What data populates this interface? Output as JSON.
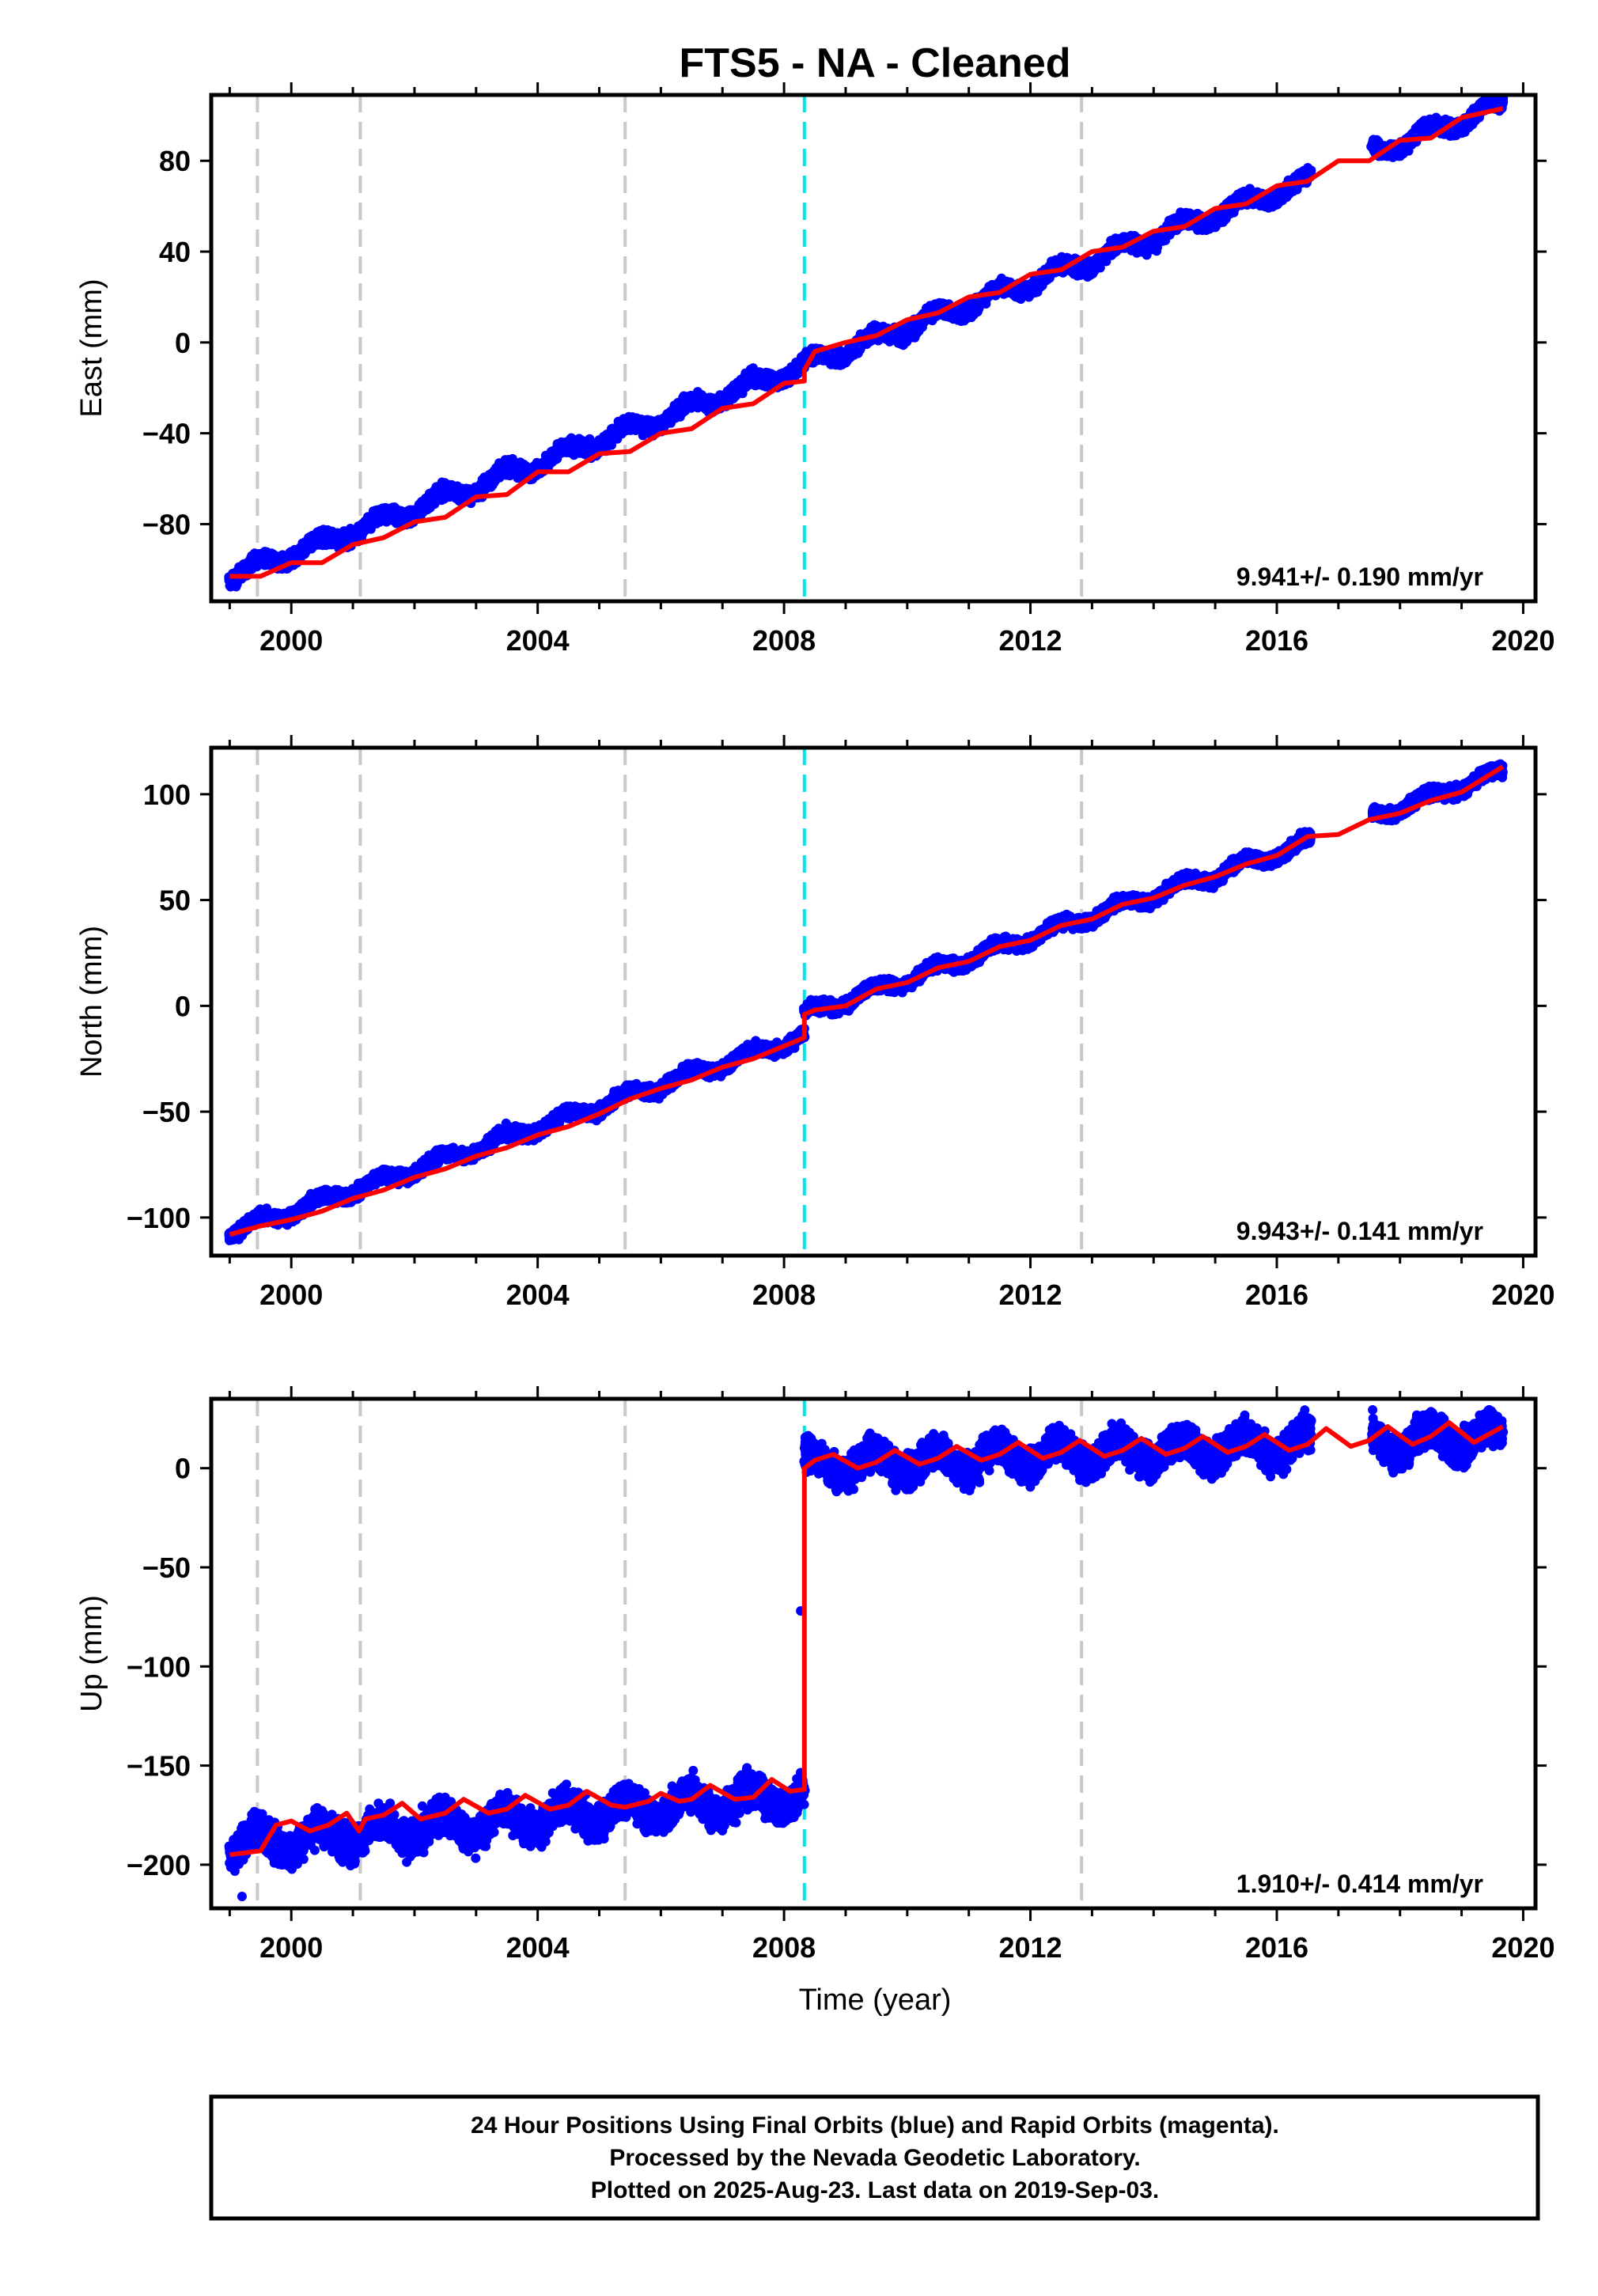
{
  "title": "FTS5  - NA - Cleaned",
  "xlabel": "Time (year)",
  "footer": {
    "line1": "24 Hour Positions Using Final Orbits (blue) and Rapid Orbits (magenta).",
    "line2": "Processed by the Nevada Geodetic Laboratory.",
    "line3": "Plotted on 2025-Aug-23. Last data on 2019-Sep-03."
  },
  "colors": {
    "data": "#0000ff",
    "model": "#ff0000",
    "equipment_change": "#c8c8c8",
    "offset_event": "#00e5ee",
    "frame": "#000000"
  },
  "chart_data": [
    {
      "type": "scatter",
      "panel": "east",
      "ylabel": "East (mm)",
      "rate": "9.941+/- 0.190 mm/yr",
      "xlim": [
        1998.7,
        2020.2
      ],
      "ylim": [
        -114,
        109
      ],
      "yticks": [
        -80,
        -40,
        0,
        40,
        80
      ],
      "xticks": [
        2000,
        2004,
        2008,
        2012,
        2016,
        2020
      ],
      "grey_lines": [
        1999.45,
        2001.12,
        2005.42,
        2012.83
      ],
      "cyan_lines": [
        2008.33
      ],
      "series": [
        {
          "role": "daily positions (blue)",
          "segments": [
            {
              "x": [
                1999.0,
                2008.33
              ],
              "trend_at_start": -103.0,
              "rate": 9.941,
              "seasonal_amp": 3.0,
              "scatter": 2.2
            },
            {
              "x": [
                2008.33,
                2016.55
              ],
              "trend_at_start": -10.0,
              "rate": 9.941,
              "seasonal_amp": 3.0,
              "scatter": 2.2
            },
            {
              "x": [
                2017.55,
                2019.67
              ],
              "trend_at_start": 83.6,
              "rate": 9.941,
              "seasonal_amp": 3.0,
              "scatter": 2.2
            }
          ]
        },
        {
          "role": "model fit (red)",
          "points": [
            [
              1999.0,
              -103
            ],
            [
              1999.5,
              -103
            ],
            [
              2000.0,
              -97
            ],
            [
              2000.5,
              -97
            ],
            [
              2001.0,
              -89
            ],
            [
              2001.5,
              -86
            ],
            [
              2002.0,
              -79
            ],
            [
              2002.5,
              -77
            ],
            [
              2003.0,
              -68
            ],
            [
              2003.5,
              -67
            ],
            [
              2004.0,
              -57
            ],
            [
              2004.5,
              -57
            ],
            [
              2005.0,
              -49
            ],
            [
              2005.5,
              -48
            ],
            [
              2006.0,
              -40
            ],
            [
              2006.5,
              -38
            ],
            [
              2007.0,
              -29
            ],
            [
              2007.5,
              -27
            ],
            [
              2008.0,
              -18
            ],
            [
              2008.33,
              -17
            ],
            [
              2008.33,
              -12
            ],
            [
              2008.5,
              -4
            ],
            [
              2009.0,
              0
            ],
            [
              2009.5,
              3
            ],
            [
              2010.0,
              10
            ],
            [
              2010.5,
              13
            ],
            [
              2011.0,
              20
            ],
            [
              2011.5,
              22
            ],
            [
              2012.0,
              30
            ],
            [
              2012.5,
              32
            ],
            [
              2013.0,
              40
            ],
            [
              2013.5,
              42
            ],
            [
              2014.0,
              49
            ],
            [
              2014.5,
              51
            ],
            [
              2015.0,
              59
            ],
            [
              2015.5,
              61
            ],
            [
              2016.0,
              69
            ],
            [
              2016.5,
              71
            ],
            [
              2017.0,
              80
            ],
            [
              2017.5,
              80
            ],
            [
              2018.0,
              89
            ],
            [
              2018.5,
              90
            ],
            [
              2019.0,
              99
            ],
            [
              2019.67,
              103
            ]
          ]
        }
      ]
    },
    {
      "type": "scatter",
      "panel": "north",
      "ylabel": "North (mm)",
      "rate": "9.943+/- 0.141 mm/yr",
      "xlim": [
        1998.7,
        2020.2
      ],
      "ylim": [
        -118,
        122
      ],
      "yticks": [
        -100,
        -50,
        0,
        50,
        100
      ],
      "xticks": [
        2000,
        2004,
        2008,
        2012,
        2016,
        2020
      ],
      "grey_lines": [
        1999.45,
        2001.12,
        2005.42,
        2012.83
      ],
      "cyan_lines": [
        2008.33
      ],
      "series": [
        {
          "role": "daily positions (blue)",
          "segments": [
            {
              "x": [
                1999.0,
                2008.33
              ],
              "trend_at_start": -107.0,
              "rate": 9.943,
              "seasonal_amp": 2.5,
              "scatter": 2.0
            },
            {
              "x": [
                2008.33,
                2016.55
              ],
              "trend_at_start": -4.0,
              "rate": 9.943,
              "seasonal_amp": 2.5,
              "scatter": 2.0
            },
            {
              "x": [
                2017.55,
                2019.67
              ],
              "trend_at_start": 89.4,
              "rate": 9.943,
              "seasonal_amp": 2.5,
              "scatter": 2.0
            }
          ]
        },
        {
          "role": "model fit (red)",
          "points": [
            [
              1999.0,
              -108
            ],
            [
              1999.5,
              -104
            ],
            [
              2000.0,
              -101
            ],
            [
              2000.5,
              -97
            ],
            [
              2001.0,
              -91
            ],
            [
              2001.5,
              -87
            ],
            [
              2002.0,
              -81
            ],
            [
              2002.5,
              -77
            ],
            [
              2003.0,
              -71
            ],
            [
              2003.5,
              -67
            ],
            [
              2004.0,
              -61
            ],
            [
              2004.5,
              -57
            ],
            [
              2005.0,
              -51
            ],
            [
              2005.5,
              -44
            ],
            [
              2006.0,
              -39
            ],
            [
              2006.5,
              -35
            ],
            [
              2007.0,
              -29
            ],
            [
              2007.5,
              -25
            ],
            [
              2008.0,
              -19
            ],
            [
              2008.33,
              -15
            ],
            [
              2008.33,
              -4
            ],
            [
              2008.5,
              -2
            ],
            [
              2009.0,
              0
            ],
            [
              2009.5,
              8
            ],
            [
              2010.0,
              11
            ],
            [
              2010.5,
              18
            ],
            [
              2011.0,
              21
            ],
            [
              2011.5,
              28
            ],
            [
              2012.0,
              31
            ],
            [
              2012.5,
              38
            ],
            [
              2013.0,
              41
            ],
            [
              2013.5,
              48
            ],
            [
              2014.0,
              51
            ],
            [
              2014.5,
              57
            ],
            [
              2015.0,
              61
            ],
            [
              2015.5,
              67
            ],
            [
              2016.0,
              71
            ],
            [
              2016.5,
              80
            ],
            [
              2017.0,
              81
            ],
            [
              2017.5,
              88
            ],
            [
              2018.0,
              91
            ],
            [
              2018.5,
              97
            ],
            [
              2019.0,
              101
            ],
            [
              2019.67,
              113
            ]
          ]
        }
      ]
    },
    {
      "type": "scatter",
      "panel": "up",
      "ylabel": "Up (mm)",
      "rate": "1.910+/- 0.414 mm/yr",
      "xlim": [
        1998.7,
        2020.2
      ],
      "ylim": [
        -222,
        35
      ],
      "yticks": [
        -200,
        -150,
        -100,
        -50,
        0
      ],
      "xticks": [
        2000,
        2004,
        2008,
        2012,
        2016,
        2020
      ],
      "grey_lines": [
        1999.45,
        2001.12,
        2005.42,
        2012.83
      ],
      "cyan_lines": [
        2008.33
      ],
      "series": [
        {
          "role": "daily positions (blue)",
          "segments": [
            {
              "x": [
                1999.0,
                2008.33
              ],
              "trend_at_start": -190.0,
              "rate": 2.7,
              "seasonal_amp": 6.0,
              "scatter": 6.0
            },
            {
              "x": [
                2008.33,
                2016.55
              ],
              "trend_at_start": 1.0,
              "rate": 1.4,
              "seasonal_amp": 6.0,
              "scatter": 6.0
            },
            {
              "x": [
                2017.55,
                2019.67
              ],
              "trend_at_start": 13.0,
              "rate": 1.5,
              "seasonal_amp": 6.0,
              "scatter": 6.0
            }
          ],
          "outliers": [
            [
              2008.27,
              -72
            ],
            [
              1999.2,
              -216
            ]
          ]
        },
        {
          "role": "model fit (red)",
          "points": [
            [
              1999.0,
              -195
            ],
            [
              1999.5,
              -193
            ],
            [
              1999.75,
              -180
            ],
            [
              2000.0,
              -178
            ],
            [
              2000.3,
              -183
            ],
            [
              2000.6,
              -180
            ],
            [
              2000.9,
              -174
            ],
            [
              2001.1,
              -183
            ],
            [
              2001.2,
              -177
            ],
            [
              2001.5,
              -175
            ],
            [
              2001.8,
              -169
            ],
            [
              2002.1,
              -177
            ],
            [
              2002.5,
              -174
            ],
            [
              2002.8,
              -167
            ],
            [
              2003.2,
              -174
            ],
            [
              2003.5,
              -172
            ],
            [
              2003.8,
              -165
            ],
            [
              2004.2,
              -172
            ],
            [
              2004.5,
              -170
            ],
            [
              2004.8,
              -163
            ],
            [
              2005.2,
              -170
            ],
            [
              2005.42,
              -171
            ],
            [
              2005.8,
              -168
            ],
            [
              2006.0,
              -164
            ],
            [
              2006.3,
              -168
            ],
            [
              2006.5,
              -167
            ],
            [
              2006.8,
              -160
            ],
            [
              2007.2,
              -167
            ],
            [
              2007.5,
              -166
            ],
            [
              2007.8,
              -157
            ],
            [
              2008.1,
              -163
            ],
            [
              2008.33,
              -162
            ],
            [
              2008.33,
              0
            ],
            [
              2008.5,
              4
            ],
            [
              2008.8,
              7
            ],
            [
              2009.2,
              0
            ],
            [
              2009.5,
              3
            ],
            [
              2009.8,
              9
            ],
            [
              2010.2,
              2
            ],
            [
              2010.5,
              5
            ],
            [
              2010.8,
              11
            ],
            [
              2011.2,
              4
            ],
            [
              2011.5,
              7
            ],
            [
              2011.8,
              13
            ],
            [
              2012.2,
              5
            ],
            [
              2012.5,
              8
            ],
            [
              2012.8,
              14
            ],
            [
              2013.2,
              6
            ],
            [
              2013.5,
              9
            ],
            [
              2013.8,
              15
            ],
            [
              2014.2,
              7
            ],
            [
              2014.5,
              10
            ],
            [
              2014.8,
              16
            ],
            [
              2015.2,
              8
            ],
            [
              2015.5,
              11
            ],
            [
              2015.8,
              17
            ],
            [
              2016.2,
              9
            ],
            [
              2016.5,
              12
            ],
            [
              2016.8,
              20
            ],
            [
              2017.2,
              11
            ],
            [
              2017.5,
              14
            ],
            [
              2017.8,
              21
            ],
            [
              2018.2,
              12
            ],
            [
              2018.5,
              16
            ],
            [
              2018.8,
              23
            ],
            [
              2019.2,
              13
            ],
            [
              2019.67,
              21
            ]
          ]
        }
      ]
    }
  ]
}
